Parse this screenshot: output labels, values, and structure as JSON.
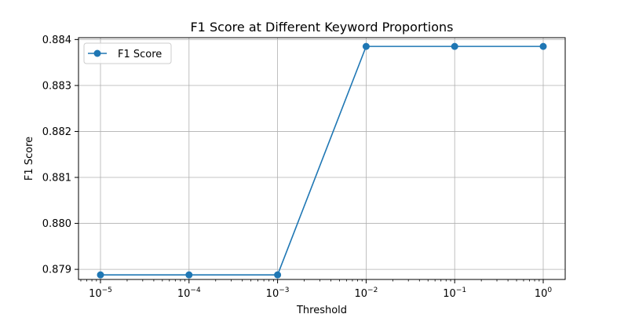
{
  "chart_data": {
    "type": "line",
    "title": "F1 Score at Different Keyword Proportions",
    "xlabel": "Threshold",
    "ylabel": "F1 Score",
    "x_scale": "log",
    "x": [
      1e-05,
      0.0001,
      0.001,
      0.01,
      0.1,
      1
    ],
    "x_tick_labels": [
      {
        "base": "10",
        "exp": "−5"
      },
      {
        "base": "10",
        "exp": "−4"
      },
      {
        "base": "10",
        "exp": "−3"
      },
      {
        "base": "10",
        "exp": "−2"
      },
      {
        "base": "10",
        "exp": "−1"
      },
      {
        "base": "10",
        "exp": "0"
      }
    ],
    "y_ticks": [
      0.879,
      0.88,
      0.881,
      0.882,
      0.883,
      0.884
    ],
    "y_tick_labels": [
      "0.879",
      "0.880",
      "0.881",
      "0.882",
      "0.883",
      "0.884"
    ],
    "ylim": [
      0.87878,
      0.88404
    ],
    "series": [
      {
        "name": "F1 Score",
        "color": "#1f77b4",
        "marker": "circle",
        "values": [
          0.87888,
          0.87888,
          0.87888,
          0.88385,
          0.88385,
          0.88385
        ]
      }
    ],
    "grid": true,
    "legend_position": "top-left"
  }
}
